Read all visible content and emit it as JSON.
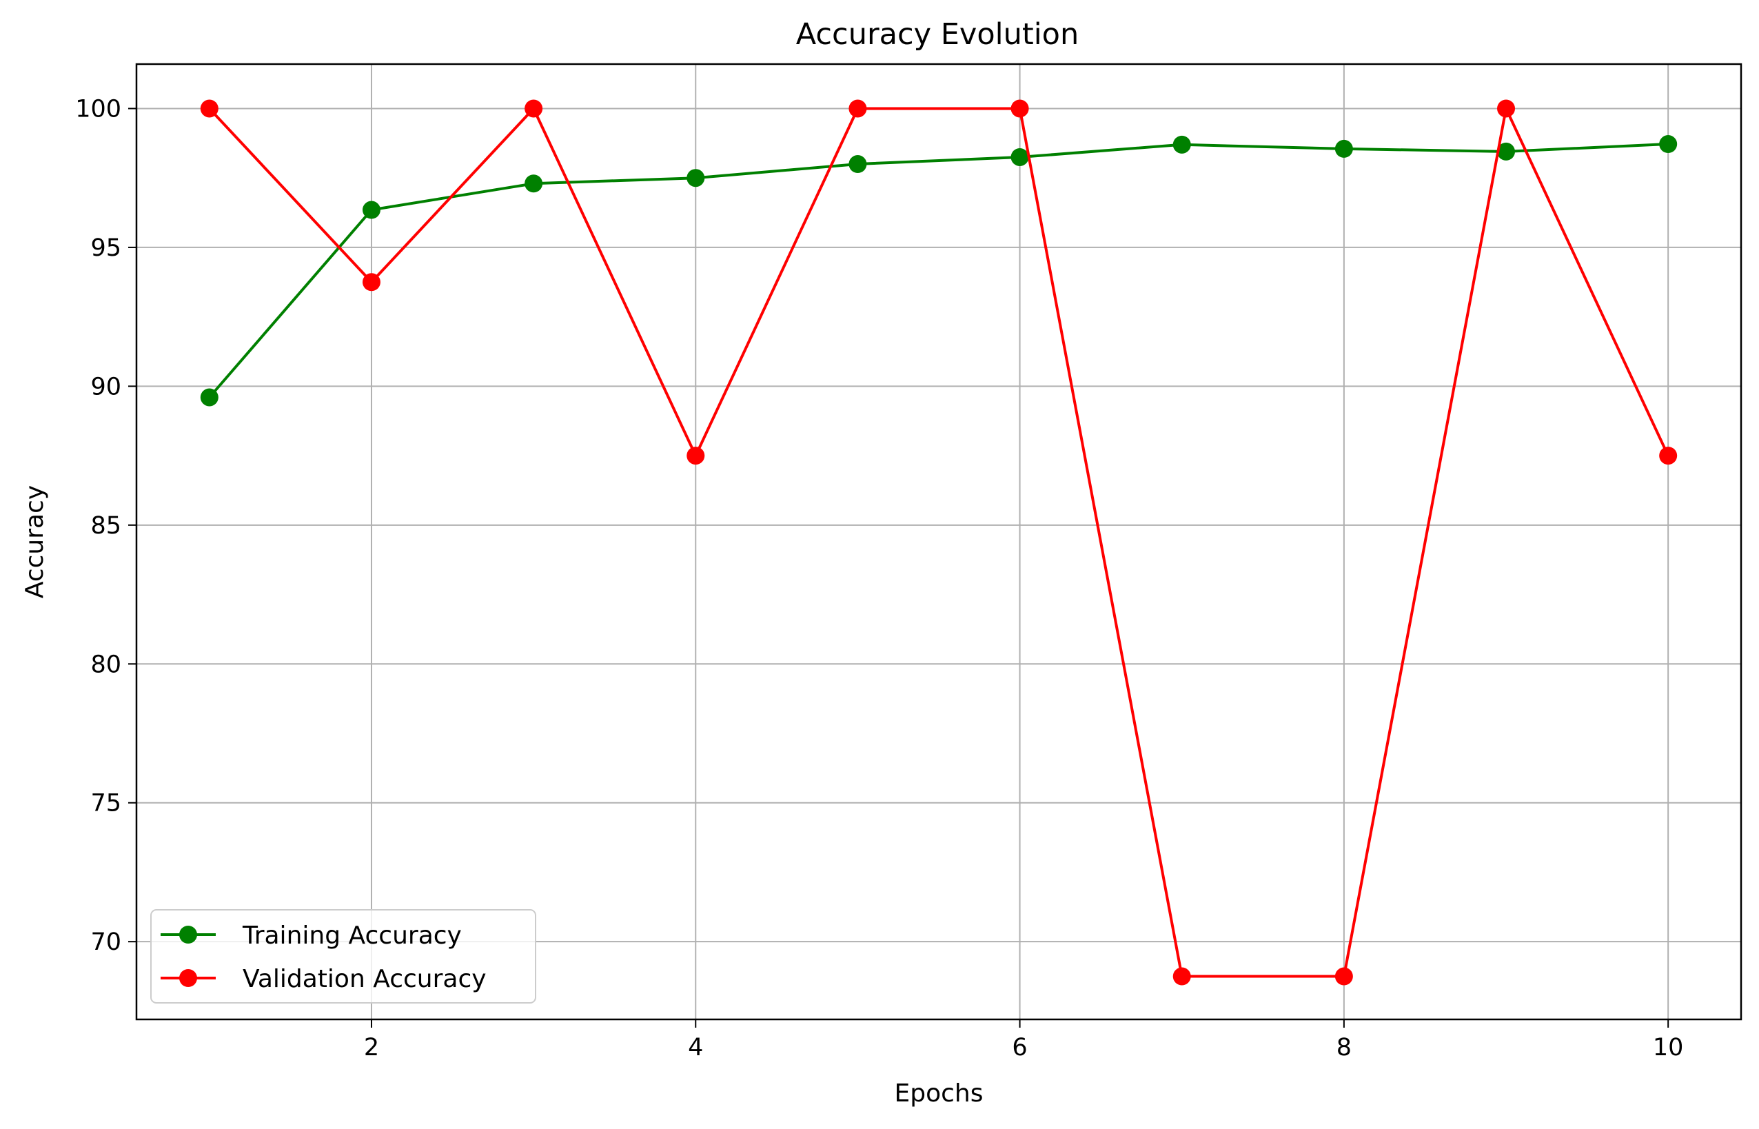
{
  "chart_data": {
    "type": "line",
    "title": "Accuracy Evolution",
    "xlabel": "Epochs",
    "ylabel": "Accuracy",
    "x": [
      1,
      2,
      3,
      4,
      5,
      6,
      7,
      8,
      9,
      10
    ],
    "xlim": [
      0.55,
      10.45
    ],
    "ylim": [
      67.2,
      101.6
    ],
    "xticks": [
      2,
      4,
      6,
      8,
      10
    ],
    "xtick_labels": [
      "2",
      "4",
      "6",
      "8",
      "10"
    ],
    "yticks": [
      70,
      75,
      80,
      85,
      90,
      95,
      100
    ],
    "ytick_labels": [
      "70",
      "75",
      "80",
      "85",
      "90",
      "95",
      "100"
    ],
    "grid": true,
    "legend_position": "lower-left",
    "series": [
      {
        "name": "Training Accuracy",
        "color": "#008000",
        "marker": "circle",
        "values": [
          89.6,
          96.35,
          97.3,
          97.5,
          98.0,
          98.25,
          98.7,
          98.55,
          98.45,
          98.72
        ]
      },
      {
        "name": "Validation Accuracy",
        "color": "#ff0000",
        "marker": "circle",
        "values": [
          100.0,
          93.75,
          100.0,
          87.5,
          100.0,
          100.0,
          68.75,
          68.75,
          100.0,
          87.5
        ]
      }
    ]
  }
}
